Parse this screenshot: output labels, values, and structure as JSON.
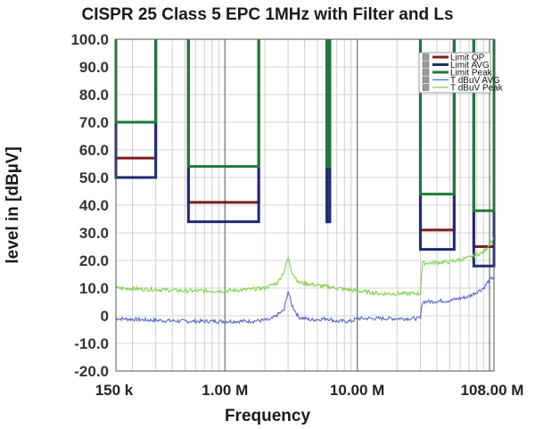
{
  "chart_data": {
    "type": "line",
    "title": "CISPR 25 Class 5 EPC 1MHz with Filter and Ls",
    "xlabel": "Frequency",
    "ylabel": "level in [dBµV]",
    "x_scale": "log",
    "xlim": [
      150000,
      108000000
    ],
    "ylim": [
      -20,
      100
    ],
    "y_ticks": [
      {
        "value": 100,
        "label": "100.0"
      },
      {
        "value": 90,
        "label": "90.0"
      },
      {
        "value": 80,
        "label": "80.0"
      },
      {
        "value": 70,
        "label": "70.0"
      },
      {
        "value": 60,
        "label": "60.0"
      },
      {
        "value": 50,
        "label": "50.0"
      },
      {
        "value": 40,
        "label": "40.0"
      },
      {
        "value": 30,
        "label": "30.0"
      },
      {
        "value": 20,
        "label": "20.0"
      },
      {
        "value": 10,
        "label": "10.0"
      },
      {
        "value": 0,
        "label": "0"
      },
      {
        "value": -10,
        "label": "-10.0"
      },
      {
        "value": -20,
        "label": "-20.0"
      }
    ],
    "x_ticks": [
      {
        "value": 150000,
        "label": "150 k"
      },
      {
        "value": 1000000,
        "label": "1.00 M"
      },
      {
        "value": 10000000,
        "label": "10.00 M"
      },
      {
        "value": 108000000,
        "label": "108.00 M"
      }
    ],
    "grid": true,
    "legend_position": "top-right",
    "series": [
      {
        "name": "Limit QP",
        "color": "#7a1f1f",
        "kind": "limit",
        "bands": [
          {
            "x": [
              150000,
              300000
            ],
            "y": 57
          },
          {
            "x": [
              530000,
              1800000
            ],
            "y": 41
          },
          {
            "x": [
              5900000,
              6200000
            ],
            "y": 34
          },
          {
            "x": [
              30000000,
              54000000
            ],
            "y": 31
          },
          {
            "x": [
              76000000,
              108000000
            ],
            "y": 25
          }
        ]
      },
      {
        "name": "Limit AVG",
        "color": "#1f2a6e",
        "kind": "limit",
        "bands": [
          {
            "x": [
              150000,
              300000
            ],
            "y": 50
          },
          {
            "x": [
              530000,
              1800000
            ],
            "y": 34
          },
          {
            "x": [
              5900000,
              6200000
            ],
            "y": 34
          },
          {
            "x": [
              30000000,
              54000000
            ],
            "y": 24
          },
          {
            "x": [
              76000000,
              108000000
            ],
            "y": 18
          }
        ]
      },
      {
        "name": "Limit Peak",
        "color": "#1e7a3a",
        "kind": "limit",
        "bands": [
          {
            "x": [
              150000,
              300000
            ],
            "y": 70
          },
          {
            "x": [
              530000,
              1800000
            ],
            "y": 54
          },
          {
            "x": [
              5900000,
              6200000
            ],
            "y": 54
          },
          {
            "x": [
              30000000,
              54000000
            ],
            "y": 44
          },
          {
            "x": [
              76000000,
              108000000
            ],
            "y": 38
          }
        ]
      },
      {
        "name": "T dBuV AVG",
        "color": "#5a66c8",
        "kind": "trace",
        "points": [
          [
            150000,
            -1
          ],
          [
            250000,
            -1.5
          ],
          [
            500000,
            -2
          ],
          [
            800000,
            -2
          ],
          [
            1000000,
            -2
          ],
          [
            1500000,
            -2
          ],
          [
            2200000,
            -1.5
          ],
          [
            2800000,
            2
          ],
          [
            3000000,
            9
          ],
          [
            3200000,
            4
          ],
          [
            3600000,
            -0.5
          ],
          [
            4500000,
            -1.5
          ],
          [
            6000000,
            -1
          ],
          [
            7000000,
            -2
          ],
          [
            9000000,
            -2
          ],
          [
            10000000,
            -1
          ],
          [
            12000000,
            -1
          ],
          [
            20000000,
            -1
          ],
          [
            30000000,
            -1
          ],
          [
            31000000,
            5
          ],
          [
            50000000,
            5.5
          ],
          [
            70000000,
            7
          ],
          [
            90000000,
            10
          ],
          [
            100000000,
            13
          ],
          [
            108000000,
            14
          ]
        ]
      },
      {
        "name": "T dBuV Peak",
        "color": "#7fcf4f",
        "kind": "trace",
        "points": [
          [
            150000,
            10
          ],
          [
            300000,
            9.5
          ],
          [
            500000,
            9
          ],
          [
            800000,
            9
          ],
          [
            1000000,
            9
          ],
          [
            1500000,
            9.5
          ],
          [
            2000000,
            10
          ],
          [
            2500000,
            12
          ],
          [
            2800000,
            16
          ],
          [
            3000000,
            21
          ],
          [
            3200000,
            16
          ],
          [
            3600000,
            12
          ],
          [
            5000000,
            11
          ],
          [
            7000000,
            10
          ],
          [
            10000000,
            9
          ],
          [
            15000000,
            8
          ],
          [
            20000000,
            8
          ],
          [
            30000000,
            8
          ],
          [
            31000000,
            19
          ],
          [
            50000000,
            19.5
          ],
          [
            70000000,
            21
          ],
          [
            90000000,
            23
          ],
          [
            100000000,
            26
          ],
          [
            108000000,
            28
          ]
        ]
      }
    ]
  }
}
